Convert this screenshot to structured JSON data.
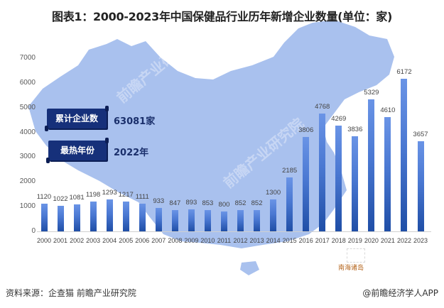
{
  "title": "图表1：2000-2023年中国保健品行业历年新增企业数量(单位：家)",
  "summary": {
    "total_label": "累计企业数",
    "total_value": "63081家",
    "peak_label": "最热年份",
    "peak_value": "2022年"
  },
  "map_annotation": "南海诸岛",
  "footer": {
    "source": "资料来源：企查猫 前瞻产业研究院",
    "credit": "@前瞻经济学人APP"
  },
  "watermark": "前瞻产业研究院",
  "colors": {
    "bar_top": "#6a94e6",
    "bar_bottom": "#1f4ea6",
    "badge": "#16307a",
    "map": "#a9c1ee"
  },
  "chart_data": {
    "type": "bar",
    "title": "2000-2023年中国保健品行业历年新增企业数量(单位：家)",
    "xlabel": "",
    "ylabel": "",
    "ylim": [
      0,
      7000
    ],
    "yticks": [
      0,
      1000,
      2000,
      3000,
      4000,
      5000,
      6000,
      7000
    ],
    "grid": false,
    "legend": null,
    "categories": [
      "2000",
      "2001",
      "2002",
      "2003",
      "2004",
      "2005",
      "2006",
      "2007",
      "2008",
      "2009",
      "2010",
      "2011",
      "2012",
      "2013",
      "2014",
      "2015",
      "2016",
      "2017",
      "2018",
      "2019",
      "2020",
      "2021",
      "2022",
      "2023"
    ],
    "values": [
      1120,
      1022,
      1081,
      1198,
      1293,
      1217,
      1111,
      933,
      847,
      893,
      853,
      800,
      852,
      852,
      1300,
      2185,
      3806,
      4768,
      4269,
      3836,
      5329,
      4610,
      6172,
      3657
    ]
  }
}
